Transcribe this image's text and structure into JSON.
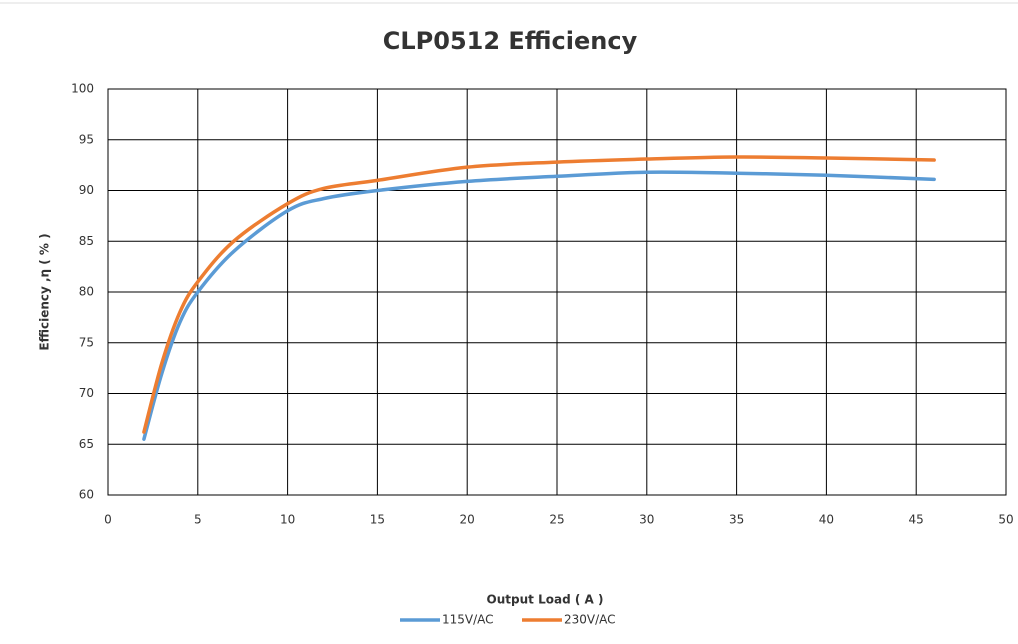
{
  "chart_data": {
    "type": "line",
    "title": "CLP0512 Efficiency",
    "x_label": "Output Load ( A )",
    "y_label": "Efficiency ,η ( % )",
    "x": [
      2,
      3,
      4,
      5,
      7,
      10,
      12,
      15,
      20,
      25,
      30,
      35,
      40,
      46
    ],
    "series": [
      {
        "name": "115V/AC",
        "color": "#5b9bd5",
        "values": [
          65.5,
          72,
          77,
          80,
          84,
          88,
          89.2,
          90,
          90.9,
          91.4,
          91.8,
          91.7,
          91.5,
          91.1
        ]
      },
      {
        "name": "230V/AC",
        "color": "#ed7d31",
        "values": [
          66.2,
          73,
          78,
          81,
          85,
          88.7,
          90.2,
          91,
          92.3,
          92.8,
          93.1,
          93.3,
          93.2,
          93.0
        ]
      }
    ],
    "xlim": [
      0,
      50
    ],
    "xticks": [
      0,
      5,
      10,
      15,
      20,
      25,
      30,
      35,
      40,
      45,
      50
    ],
    "ylim": [
      60,
      100
    ],
    "yticks": [
      60,
      65,
      70,
      75,
      80,
      85,
      90,
      95,
      100
    ],
    "grid": true,
    "legend": "bottom"
  }
}
